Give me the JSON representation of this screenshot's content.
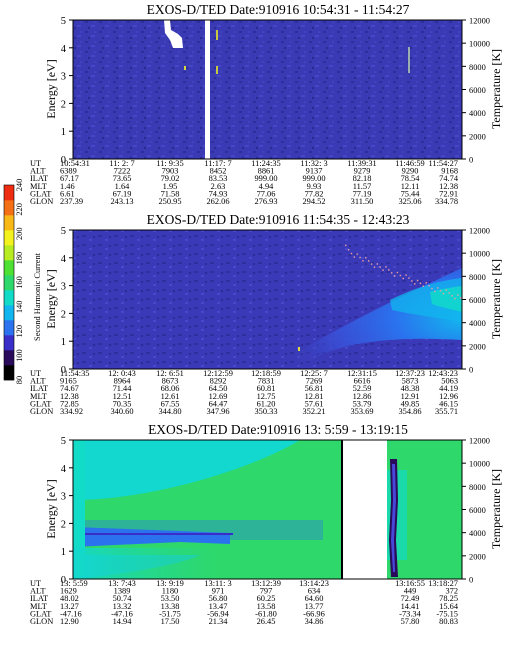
{
  "chart_data": [
    {
      "type": "heatmap",
      "title": "EXOS-D/TED   Date:910916   10:54:31 - 11:54:27",
      "ylabel": "Energy [eV]",
      "y2label": "Temperature [K]",
      "ylim": [
        0,
        5
      ],
      "y2lim": [
        0,
        12000
      ],
      "yticks": [
        "0",
        "1",
        "2",
        "3",
        "4",
        "5"
      ],
      "y2ticks": [
        "0",
        "2000",
        "4000",
        "6000",
        "8000",
        "10000",
        "12000"
      ],
      "data_gaps": [
        {
          "x_from": "11:11:40",
          "x_to": "11:12:40"
        }
      ],
      "ephemeris": {
        "labels": [
          "UT",
          "ALT",
          "ILAT",
          "MLT",
          "GLAT",
          "GLON"
        ],
        "rows": [
          [
            "10:54:31",
            "11: 2: 7",
            "11: 9:35",
            "11:17: 7",
            "11:24:35",
            "11:32: 3",
            "11:39:31",
            "11:46:59",
            "11:54:27"
          ],
          [
            "6389",
            "7222",
            "7903",
            "8452",
            "8861",
            "9137",
            "9279",
            "9290",
            "9168"
          ],
          [
            "67.17",
            "73.65",
            "79.02",
            "83.53",
            "999.00",
            "999.00",
            "82.18",
            "78.54",
            "74.74"
          ],
          [
            "1.46",
            "1.64",
            "1.95",
            "2.63",
            "4.94",
            "9.93",
            "11.57",
            "12.11",
            "12.38"
          ],
          [
            "6.61",
            "67.19",
            "71.58",
            "74.93",
            "77.06",
            "77.82",
            "77.19",
            "75.44",
            "72.91"
          ],
          [
            "237.39",
            "243.13",
            "250.95",
            "262.06",
            "276.93",
            "294.52",
            "311.50",
            "325.06",
            "334.78"
          ]
        ]
      }
    },
    {
      "type": "heatmap",
      "title": "EXOS-D/TED   Date:910916   11:54:35 - 12:43:23",
      "ylabel": "Energy [eV]",
      "y2label": "Temperature [K]",
      "ylim": [
        0,
        5
      ],
      "y2lim": [
        0,
        12000
      ],
      "yticks": [
        "0",
        "1",
        "2",
        "3",
        "4",
        "5"
      ],
      "y2ticks": [
        "0",
        "2000",
        "4000",
        "6000",
        "8000",
        "10000",
        "12000"
      ],
      "colorbar": {
        "label": "Second Harmonic Current",
        "ticks": [
          "80",
          "100",
          "120",
          "140",
          "160",
          "180",
          "200",
          "220",
          "240"
        ],
        "range": [
          80,
          240
        ],
        "colors": [
          "#000000",
          "#2a0a5a",
          "#3a2ec8",
          "#2a72ee",
          "#12b6ee",
          "#12dcc8",
          "#2ed86a",
          "#4ee032",
          "#b8ec22",
          "#f4f21e",
          "#f8b818",
          "#f47016",
          "#ee2c10"
        ]
      },
      "temperature_trace": {
        "x_from": "12:24:00",
        "x_to": "12:43:00",
        "from_k": 10500,
        "to_k": 6200
      },
      "ephemeris": {
        "labels": [
          "UT",
          "ALT",
          "ILAT",
          "MLT",
          "GLAT",
          "GLON"
        ],
        "rows": [
          [
            "11:54:35",
            "12: 0:43",
            "12: 6:51",
            "12:12:59",
            "12:18:59",
            "12:25: 7",
            "12:31:15",
            "12:37:23",
            "12:43:23"
          ],
          [
            "9165",
            "8964",
            "8673",
            "8292",
            "7831",
            "7269",
            "6616",
            "5873",
            "5063"
          ],
          [
            "74.67",
            "71.44",
            "68.06",
            "64.50",
            "60.81",
            "56.81",
            "52.59",
            "48.38",
            "44.19"
          ],
          [
            "12.38",
            "12.51",
            "12.61",
            "12.69",
            "12.75",
            "12.81",
            "12.86",
            "12.91",
            "12.96"
          ],
          [
            "72.85",
            "70.35",
            "67.55",
            "64.47",
            "61.20",
            "57.61",
            "53.79",
            "49.85",
            "46.15"
          ],
          [
            "334.92",
            "340.60",
            "344.80",
            "347.96",
            "350.33",
            "352.21",
            "353.69",
            "354.86",
            "355.71"
          ]
        ]
      }
    },
    {
      "type": "heatmap",
      "title": "EXOS-D/TED   Date:910916   13: 5:59 - 13:19:15",
      "ylabel": "Energy [eV]",
      "y2label": "Temperature [K]",
      "ylim": [
        0,
        5
      ],
      "y2lim": [
        0,
        12000
      ],
      "yticks": [
        "0",
        "1",
        "2",
        "3",
        "4",
        "5"
      ],
      "y2ticks": [
        "0",
        "2000",
        "4000",
        "6000",
        "8000",
        "10000",
        "12000"
      ],
      "data_gaps": [
        {
          "x_from": "13:14:46",
          "x_to": "13:16:38"
        }
      ],
      "ephemeris": {
        "labels": [
          "UT",
          "ALT",
          "ILAT",
          "MLT",
          "GLAT",
          "GLON"
        ],
        "rows": [
          [
            "13: 5:59",
            "13: 7:43",
            "13: 9:19",
            "13:11: 3",
            "13:12:39",
            "13:14:23",
            "",
            "13:16:55",
            "13:18:27"
          ],
          [
            "1629",
            "1389",
            "1180",
            "971",
            "797",
            "634",
            "",
            "449",
            "372"
          ],
          [
            "48.02",
            "50.74",
            "53.50",
            "56.80",
            "60.25",
            "64.60",
            "",
            "72.49",
            "78.25"
          ],
          [
            "13.27",
            "13.32",
            "13.38",
            "13.47",
            "13.58",
            "13.77",
            "",
            "14.41",
            "15.64"
          ],
          [
            "-47.16",
            "-47.16",
            "-51.75",
            "-56.94",
            "-61.80",
            "-66.96",
            "",
            "-73.34",
            "-75.15"
          ],
          [
            "12.90",
            "14.94",
            "17.50",
            "21.34",
            "26.45",
            "34.86",
            "",
            "57.80",
            "80.83"
          ]
        ]
      }
    }
  ]
}
